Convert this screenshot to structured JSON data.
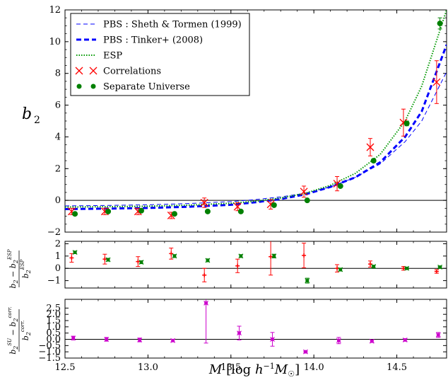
{
  "chart_data": [
    {
      "type": "scatter",
      "panel": "main",
      "ylabel_main": "b",
      "ylabel_sub": "2",
      "xlim": [
        12.5,
        14.8
      ],
      "ylim": [
        -2,
        12
      ],
      "yticks": [
        -2,
        0,
        2,
        4,
        6,
        8,
        10,
        12
      ],
      "ytick_labels": [
        "−2",
        "0",
        "2",
        "4",
        "6",
        "8",
        "10",
        "12"
      ],
      "reference_line_y": 0,
      "legend": {
        "placement": "top-left",
        "entries": [
          {
            "label": "PBS : Sheth & Tormen (1999)",
            "style": "thin-dash",
            "color": "#0000ff"
          },
          {
            "label": "PBS : Tinker+ (2008)",
            "style": "thick-dash",
            "color": "#0000ff"
          },
          {
            "label": "ESP",
            "style": "dotted",
            "color": "#009900"
          },
          {
            "label": "Correlations",
            "style": "x-marker",
            "color": "#ff0000"
          },
          {
            "label": "Separate Universe",
            "style": "dot-marker",
            "color": "#008000"
          }
        ]
      },
      "series": [
        {
          "name": "PBS : Sheth & Tormen (1999)",
          "kind": "line",
          "x": [
            12.5,
            12.75,
            13.0,
            13.25,
            13.5,
            13.65,
            13.8,
            13.95,
            14.1,
            14.25,
            14.4,
            14.55,
            14.65,
            14.8
          ],
          "y": [
            -0.35,
            -0.32,
            -0.28,
            -0.2,
            -0.08,
            0.05,
            0.22,
            0.45,
            0.85,
            1.45,
            2.3,
            3.7,
            5.0,
            8.1
          ]
        },
        {
          "name": "PBS : Tinker+ (2008)",
          "kind": "line",
          "x": [
            12.5,
            12.75,
            13.0,
            13.25,
            13.5,
            13.65,
            13.8,
            13.95,
            14.1,
            14.25,
            14.4,
            14.55,
            14.65,
            14.8
          ],
          "y": [
            -0.55,
            -0.52,
            -0.48,
            -0.4,
            -0.28,
            -0.12,
            0.08,
            0.38,
            0.85,
            1.45,
            2.4,
            4.0,
            5.6,
            9.8
          ]
        },
        {
          "name": "ESP",
          "kind": "line",
          "x": [
            12.5,
            12.75,
            13.0,
            13.25,
            13.5,
            13.65,
            13.8,
            13.95,
            14.1,
            14.25,
            14.4,
            14.55,
            14.65,
            14.8
          ],
          "y": [
            -0.42,
            -0.4,
            -0.37,
            -0.3,
            -0.18,
            -0.05,
            0.15,
            0.45,
            0.95,
            1.7,
            2.9,
            5.0,
            7.2,
            12.0
          ]
        },
        {
          "name": "Correlations",
          "kind": "errorbar",
          "x": [
            12.54,
            12.74,
            12.94,
            13.14,
            13.34,
            13.54,
            13.74,
            13.94,
            14.14,
            14.34,
            14.54,
            14.74
          ],
          "y": [
            -0.7,
            -0.7,
            -0.7,
            -0.95,
            -0.15,
            -0.4,
            -0.25,
            0.55,
            1.05,
            3.35,
            4.9,
            7.45
          ],
          "err": [
            0.2,
            0.2,
            0.2,
            0.2,
            0.3,
            0.25,
            0.3,
            0.35,
            0.45,
            0.55,
            0.85,
            1.35
          ]
        },
        {
          "name": "Separate Universe",
          "kind": "errorbar",
          "x": [
            12.56,
            12.76,
            12.96,
            13.16,
            13.36,
            13.56,
            13.76,
            13.96,
            14.16,
            14.36,
            14.56,
            14.76
          ],
          "y": [
            -0.85,
            -0.7,
            -0.65,
            -0.85,
            -0.7,
            -0.7,
            -0.3,
            0.0,
            0.9,
            2.5,
            4.85,
            11.15
          ],
          "err": [
            0.05,
            0.05,
            0.05,
            0.05,
            0.05,
            0.05,
            0.05,
            0.05,
            0.08,
            0.1,
            0.15,
            0.35
          ]
        }
      ]
    },
    {
      "type": "scatter",
      "panel": "middle",
      "xlim": [
        12.5,
        14.8
      ],
      "ylim": [
        -1.6,
        2.2
      ],
      "yticks": [
        -1,
        0,
        1,
        2
      ],
      "ytick_labels": [
        "−1",
        "0",
        "1",
        "2"
      ],
      "reference_line_y": 0,
      "series": [
        {
          "name": "Correlations",
          "kind": "errorbar",
          "x": [
            12.54,
            12.74,
            12.94,
            13.14,
            13.34,
            13.54,
            13.74,
            13.94,
            14.14,
            14.34,
            14.54,
            14.74
          ],
          "y": [
            0.85,
            0.75,
            0.55,
            1.2,
            -0.55,
            0.2,
            0.95,
            1.05,
            0.0,
            0.35,
            0.0,
            -0.25
          ],
          "err": [
            0.35,
            0.4,
            0.4,
            0.45,
            0.55,
            0.55,
            1.5,
            1.0,
            0.3,
            0.25,
            0.15,
            0.15
          ]
        },
        {
          "name": "Separate Universe",
          "kind": "errorbar",
          "x": [
            12.56,
            12.76,
            12.96,
            13.16,
            13.36,
            13.56,
            13.76,
            13.96,
            14.16,
            14.36,
            14.56,
            14.76
          ],
          "y": [
            1.3,
            0.7,
            0.5,
            1.0,
            0.65,
            1.0,
            1.0,
            -1.0,
            -0.1,
            0.15,
            0.0,
            0.1
          ],
          "err": [
            0.1,
            0.12,
            0.12,
            0.12,
            0.12,
            0.12,
            0.15,
            0.2,
            0.12,
            0.1,
            0.06,
            0.06
          ]
        }
      ]
    },
    {
      "type": "scatter",
      "panel": "bottom",
      "xlabel": "M [log h⁻¹M☉]",
      "xlim": [
        12.5,
        14.8
      ],
      "ylim": [
        -1.5,
        3.2
      ],
      "yticks": [
        -1.5,
        -1.0,
        -0.5,
        0.0,
        0.5,
        1.0,
        1.5,
        2.0,
        2.5
      ],
      "ytick_labels": [
        "−1.5",
        "−1.0",
        "−0.5",
        "0.0",
        "0.5",
        "1.0",
        "1.5",
        "2.0",
        "2.5"
      ],
      "xticks": [
        12.5,
        13.0,
        13.5,
        14.0,
        14.5
      ],
      "xtick_labels": [
        "12.5",
        "13.0",
        "13.5",
        "14.0",
        "14.5"
      ],
      "reference_line_y": 0,
      "series": [
        {
          "name": "SU − Corr.",
          "kind": "errorbar",
          "color": "#cc00cc",
          "x": [
            12.55,
            12.75,
            12.95,
            13.15,
            13.35,
            13.55,
            13.75,
            13.95,
            14.15,
            14.35,
            14.55,
            14.75
          ],
          "y": [
            0.1,
            0.0,
            -0.05,
            -0.1,
            2.9,
            0.5,
            0.0,
            -1.0,
            -0.1,
            -0.15,
            -0.05,
            0.35
          ],
          "err": [
            0.15,
            0.15,
            0.15,
            0.1,
            3.2,
            0.55,
            0.55,
            0.05,
            0.25,
            0.1,
            0.1,
            0.2
          ]
        }
      ]
    }
  ]
}
